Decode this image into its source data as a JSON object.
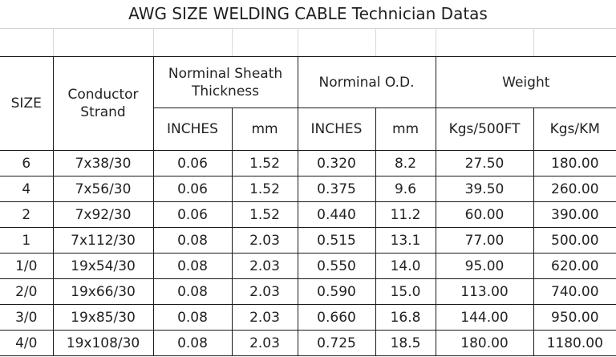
{
  "title": "AWG SIZE WELDING CABLE Technician Datas",
  "headers": {
    "size": "SIZE",
    "conductor_line1": "Conductor",
    "conductor_line2": "Strand",
    "sheath_line1": "Norminal Sheath",
    "sheath_line2": "Thickness",
    "od": "Norminal O.D.",
    "weight": "Weight",
    "sheath_inches": "INCHES",
    "sheath_mm": "mm",
    "od_inches": "INCHES",
    "od_mm": "mm",
    "kgs_500ft": "Kgs/500FT",
    "kgs_km": "Kgs/KM"
  },
  "rows": [
    {
      "size": "6",
      "strand": "7x38/30",
      "sheath_in": "0.06",
      "sheath_mm": "1.52",
      "od_in": "0.320",
      "od_mm": "8.2",
      "kg500": "27.50",
      "kgkm": "180.00"
    },
    {
      "size": "4",
      "strand": "7x56/30",
      "sheath_in": "0.06",
      "sheath_mm": "1.52",
      "od_in": "0.375",
      "od_mm": "9.6",
      "kg500": "39.50",
      "kgkm": "260.00"
    },
    {
      "size": "2",
      "strand": "7x92/30",
      "sheath_in": "0.06",
      "sheath_mm": "1.52",
      "od_in": "0.440",
      "od_mm": "11.2",
      "kg500": "60.00",
      "kgkm": "390.00"
    },
    {
      "size": "1",
      "strand": "7x112/30",
      "sheath_in": "0.08",
      "sheath_mm": "2.03",
      "od_in": "0.515",
      "od_mm": "13.1",
      "kg500": "77.00",
      "kgkm": "500.00"
    },
    {
      "size": "1/0",
      "strand": "19x54/30",
      "sheath_in": "0.08",
      "sheath_mm": "2.03",
      "od_in": "0.550",
      "od_mm": "14.0",
      "kg500": "95.00",
      "kgkm": "620.00"
    },
    {
      "size": "2/0",
      "strand": "19x66/30",
      "sheath_in": "0.08",
      "sheath_mm": "2.03",
      "od_in": "0.590",
      "od_mm": "15.0",
      "kg500": "113.00",
      "kgkm": "740.00"
    },
    {
      "size": "3/0",
      "strand": "19x85/30",
      "sheath_in": "0.08",
      "sheath_mm": "2.03",
      "od_in": "0.660",
      "od_mm": "16.8",
      "kg500": "144.00",
      "kgkm": "950.00"
    },
    {
      "size": "4/0",
      "strand": "19x108/30",
      "sheath_in": "0.08",
      "sheath_mm": "2.03",
      "od_in": "0.725",
      "od_mm": "18.5",
      "kg500": "180.00",
      "kgkm": "1180.00"
    }
  ]
}
